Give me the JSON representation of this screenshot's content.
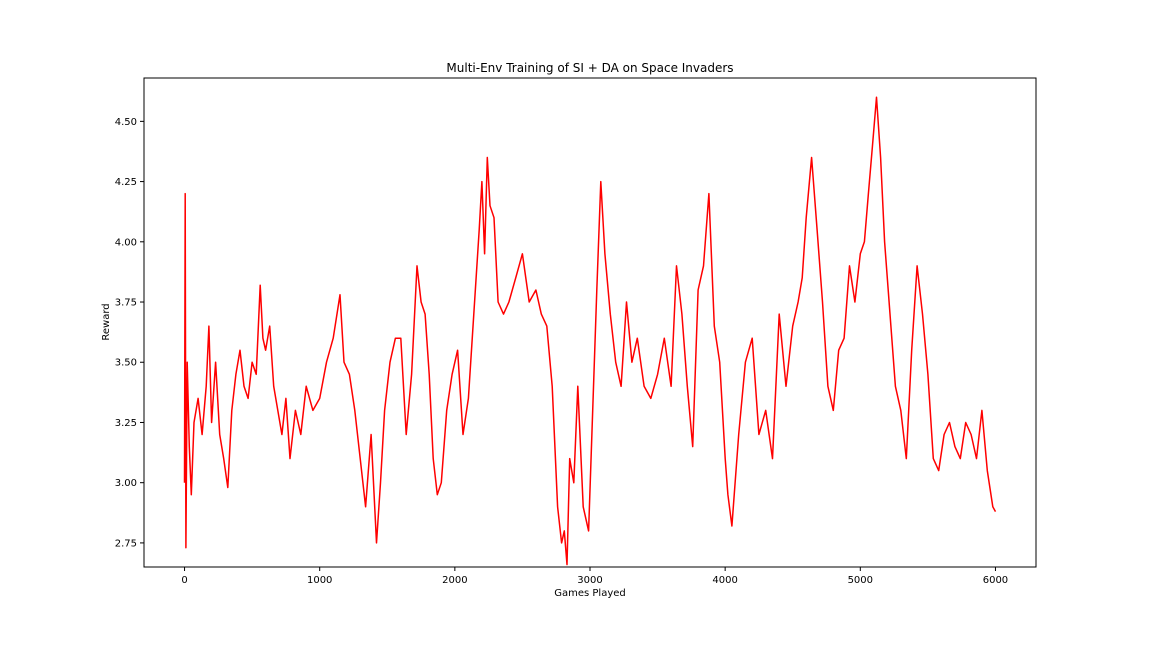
{
  "chart_data": {
    "type": "line",
    "title": "Multi-Env Training of SI + DA on Space Invaders",
    "xlabel": "Games Played",
    "ylabel": "Reward",
    "xlim": [
      -300,
      6300
    ],
    "ylim": [
      2.65,
      4.68
    ],
    "xticks": [
      0,
      1000,
      2000,
      3000,
      4000,
      5000,
      6000
    ],
    "xtick_labels": [
      "0",
      "1000",
      "2000",
      "3000",
      "4000",
      "5000",
      "6000"
    ],
    "yticks": [
      2.75,
      3.0,
      3.25,
      3.5,
      3.75,
      4.0,
      4.25,
      4.5
    ],
    "ytick_labels": [
      "2.75",
      "3.00",
      "3.25",
      "3.50",
      "3.75",
      "4.00",
      "4.25",
      "4.50"
    ],
    "grid": false,
    "line_color": "#ff0000",
    "series": [
      {
        "x": [
          0,
          5,
          10,
          20,
          35,
          50,
          70,
          100,
          130,
          160,
          180,
          200,
          230,
          260,
          290,
          320,
          350,
          380,
          410,
          440,
          470,
          500,
          530,
          560,
          580,
          600,
          630,
          660,
          690,
          720,
          750,
          780,
          820,
          860,
          900,
          950,
          1000,
          1050,
          1100,
          1150,
          1180,
          1220,
          1260,
          1300,
          1340,
          1380,
          1420,
          1450,
          1480,
          1520,
          1560,
          1600,
          1640,
          1680,
          1720,
          1750,
          1780,
          1810,
          1840,
          1870,
          1900,
          1940,
          1980,
          2020,
          2060,
          2100,
          2140,
          2180,
          2200,
          2220,
          2240,
          2260,
          2290,
          2320,
          2360,
          2400,
          2450,
          2500,
          2550,
          2600,
          2640,
          2680,
          2720,
          2760,
          2790,
          2810,
          2830,
          2850,
          2880,
          2910,
          2950,
          2990,
          3020,
          3050,
          3080,
          3110,
          3150,
          3190,
          3230,
          3270,
          3310,
          3350,
          3400,
          3450,
          3500,
          3550,
          3600,
          3640,
          3680,
          3720,
          3760,
          3800,
          3840,
          3880,
          3920,
          3960,
          4000,
          4020,
          4050,
          4100,
          4150,
          4200,
          4250,
          4300,
          4350,
          4400,
          4450,
          4500,
          4540,
          4570,
          4600,
          4640,
          4680,
          4720,
          4760,
          4800,
          4840,
          4880,
          4920,
          4960,
          5000,
          5030,
          5060,
          5090,
          5120,
          5150,
          5180,
          5220,
          5260,
          5300,
          5340,
          5380,
          5420,
          5460,
          5500,
          5540,
          5580,
          5620,
          5660,
          5700,
          5740,
          5780,
          5820,
          5860,
          5900,
          5940,
          5980,
          6000
        ],
        "y": [
          3.0,
          4.2,
          2.73,
          3.5,
          3.15,
          2.95,
          3.25,
          3.35,
          3.2,
          3.4,
          3.65,
          3.25,
          3.5,
          3.2,
          3.1,
          2.98,
          3.3,
          3.45,
          3.55,
          3.4,
          3.35,
          3.5,
          3.45,
          3.82,
          3.6,
          3.55,
          3.65,
          3.4,
          3.3,
          3.2,
          3.35,
          3.1,
          3.3,
          3.2,
          3.4,
          3.3,
          3.35,
          3.5,
          3.6,
          3.78,
          3.5,
          3.45,
          3.3,
          3.1,
          2.9,
          3.2,
          2.75,
          3.0,
          3.3,
          3.5,
          3.6,
          3.6,
          3.2,
          3.45,
          3.9,
          3.75,
          3.7,
          3.45,
          3.1,
          2.95,
          3.0,
          3.3,
          3.45,
          3.55,
          3.2,
          3.35,
          3.7,
          4.05,
          4.25,
          3.95,
          4.35,
          4.15,
          4.1,
          3.75,
          3.7,
          3.75,
          3.85,
          3.95,
          3.75,
          3.8,
          3.7,
          3.65,
          3.4,
          2.9,
          2.75,
          2.8,
          2.66,
          3.1,
          3.0,
          3.4,
          2.9,
          2.8,
          3.3,
          3.8,
          4.25,
          3.95,
          3.7,
          3.5,
          3.4,
          3.75,
          3.5,
          3.6,
          3.4,
          3.35,
          3.45,
          3.6,
          3.4,
          3.9,
          3.7,
          3.4,
          3.15,
          3.8,
          3.9,
          4.2,
          3.65,
          3.5,
          3.1,
          2.95,
          2.82,
          3.2,
          3.5,
          3.6,
          3.2,
          3.3,
          3.1,
          3.7,
          3.4,
          3.65,
          3.75,
          3.85,
          4.1,
          4.35,
          4.05,
          3.75,
          3.4,
          3.3,
          3.55,
          3.6,
          3.9,
          3.75,
          3.95,
          4.0,
          4.2,
          4.4,
          4.6,
          4.35,
          4.0,
          3.7,
          3.4,
          3.3,
          3.1,
          3.55,
          3.9,
          3.7,
          3.45,
          3.1,
          3.05,
          3.2,
          3.25,
          3.15,
          3.1,
          3.25,
          3.2,
          3.1,
          3.3,
          3.05,
          2.9,
          2.88
        ]
      }
    ]
  }
}
